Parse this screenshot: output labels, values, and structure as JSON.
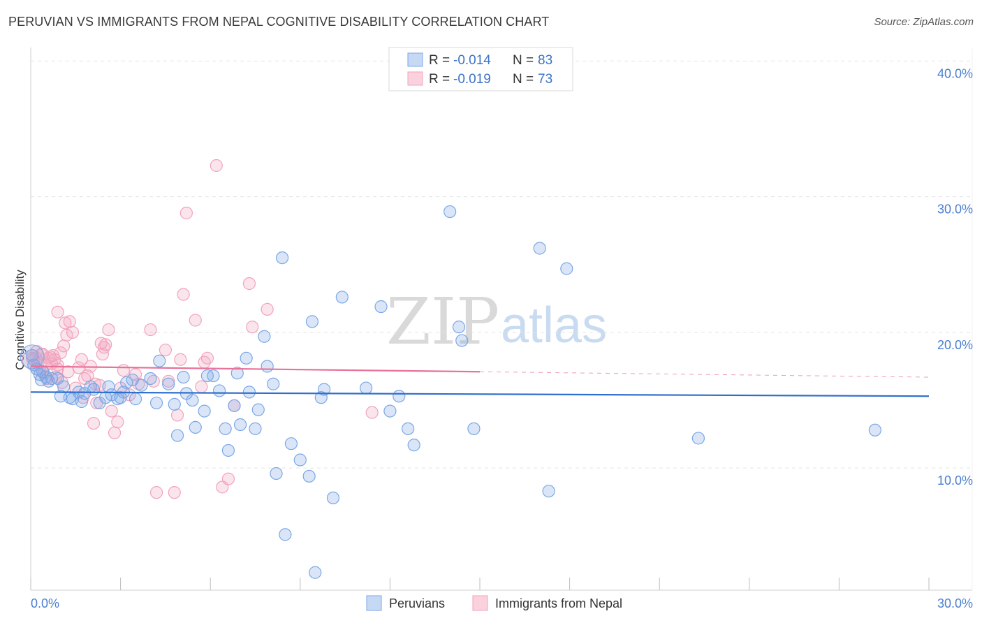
{
  "title": "PERUVIAN VS IMMIGRANTS FROM NEPAL COGNITIVE DISABILITY CORRELATION CHART",
  "source": "Source: ZipAtlas.com",
  "watermark": {
    "part1": "ZIP",
    "part2": "atlas"
  },
  "legend_top": {
    "rows": [
      {
        "r_label": "R = ",
        "r_value": "-0.014",
        "n_label": "N = ",
        "n_value": "83"
      },
      {
        "r_label": "R = ",
        "r_value": "-0.019",
        "n_label": "N = ",
        "n_value": "73"
      }
    ]
  },
  "chart_data": {
    "type": "scatter",
    "title": "PERUVIAN VS IMMIGRANTS FROM NEPAL COGNITIVE DISABILITY CORRELATION CHART",
    "xlabel": "",
    "ylabel": "Cognitive Disability",
    "xlim": [
      0,
      30
    ],
    "ylim": [
      1,
      41
    ],
    "x_tick_labels": [
      "0.0%",
      "30.0%"
    ],
    "y_ticks": [
      10,
      20,
      30,
      40
    ],
    "y_tick_labels": [
      "10.0%",
      "20.0%",
      "30.0%",
      "40.0%"
    ],
    "grid": true,
    "series": [
      {
        "name": "Peruvians",
        "color": "#7ba7e6",
        "line_color": "#2f6fcc",
        "R": -0.014,
        "N": 83,
        "trend": {
          "x": [
            0,
            30
          ],
          "y": [
            15.6,
            15.3
          ],
          "dashed_from": null
        },
        "points": [
          [
            0.05,
            18.3
          ],
          [
            0.1,
            17.6
          ],
          [
            0.2,
            17.3
          ],
          [
            0.3,
            16.9
          ],
          [
            0.35,
            16.5
          ],
          [
            0.5,
            16.7
          ],
          [
            0.6,
            16.4
          ],
          [
            0.7,
            16.6
          ],
          [
            1.0,
            15.3
          ],
          [
            1.4,
            15.1
          ],
          [
            1.8,
            15.5
          ],
          [
            2.1,
            15.8
          ],
          [
            2.5,
            15.2
          ],
          [
            3.1,
            15.6
          ],
          [
            3.4,
            16.5
          ],
          [
            0.9,
            16.6
          ],
          [
            1.1,
            16.0
          ],
          [
            1.3,
            15.2
          ],
          [
            1.7,
            14.9
          ],
          [
            2.0,
            16.0
          ],
          [
            2.3,
            14.8
          ],
          [
            2.6,
            16.0
          ],
          [
            2.9,
            15.1
          ],
          [
            3.2,
            16.3
          ],
          [
            3.5,
            15.1
          ],
          [
            3.7,
            16.1
          ],
          [
            4.0,
            16.6
          ],
          [
            4.2,
            14.8
          ],
          [
            4.3,
            17.9
          ],
          [
            4.6,
            16.2
          ],
          [
            4.8,
            14.7
          ],
          [
            4.9,
            12.4
          ],
          [
            5.1,
            16.7
          ],
          [
            5.2,
            15.5
          ],
          [
            5.4,
            15.0
          ],
          [
            5.5,
            13.0
          ],
          [
            5.8,
            14.2
          ],
          [
            5.9,
            16.8
          ],
          [
            6.1,
            16.8
          ],
          [
            6.3,
            15.7
          ],
          [
            6.5,
            12.9
          ],
          [
            6.6,
            11.3
          ],
          [
            6.8,
            14.6
          ],
          [
            6.9,
            17.0
          ],
          [
            7.0,
            13.2
          ],
          [
            7.2,
            18.1
          ],
          [
            7.3,
            15.6
          ],
          [
            7.5,
            12.9
          ],
          [
            7.6,
            14.3
          ],
          [
            7.8,
            19.7
          ],
          [
            7.9,
            17.5
          ],
          [
            8.1,
            16.2
          ],
          [
            8.2,
            9.6
          ],
          [
            8.4,
            25.5
          ],
          [
            8.5,
            5.1
          ],
          [
            8.7,
            11.8
          ],
          [
            9.0,
            10.6
          ],
          [
            9.3,
            9.4
          ],
          [
            9.4,
            20.8
          ],
          [
            9.5,
            2.3
          ],
          [
            9.7,
            15.2
          ],
          [
            9.8,
            15.8
          ],
          [
            10.1,
            7.8
          ],
          [
            10.4,
            22.6
          ],
          [
            11.2,
            15.9
          ],
          [
            11.7,
            21.9
          ],
          [
            12.0,
            14.2
          ],
          [
            12.3,
            15.3
          ],
          [
            12.6,
            12.9
          ],
          [
            12.8,
            11.7
          ],
          [
            14.3,
            20.4
          ],
          [
            14.4,
            19.4
          ],
          [
            14.8,
            12.9
          ],
          [
            14.0,
            28.9
          ],
          [
            17.0,
            26.2
          ],
          [
            17.3,
            8.3
          ],
          [
            17.9,
            24.7
          ],
          [
            22.3,
            12.2
          ],
          [
            28.2,
            12.8
          ],
          [
            0.4,
            17.1
          ],
          [
            1.6,
            15.6
          ],
          [
            2.7,
            15.4
          ],
          [
            3.0,
            15.2
          ]
        ]
      },
      {
        "name": "Immigrants from Nepal",
        "color": "#f2a3bc",
        "line_color": "#e8729a",
        "R": -0.019,
        "N": 73,
        "trend": {
          "x": [
            0,
            30
          ],
          "y": [
            17.5,
            16.7
          ],
          "dashed_from": 15
        },
        "points": [
          [
            0.05,
            18.1
          ],
          [
            0.1,
            18.0
          ],
          [
            0.2,
            18.6
          ],
          [
            0.25,
            17.8
          ],
          [
            0.3,
            17.2
          ],
          [
            0.4,
            18.4
          ],
          [
            0.5,
            17.6
          ],
          [
            0.6,
            18.1
          ],
          [
            0.7,
            17.7
          ],
          [
            0.8,
            18.0
          ],
          [
            0.9,
            17.3
          ],
          [
            1.0,
            18.5
          ],
          [
            1.05,
            16.3
          ],
          [
            1.1,
            19.0
          ],
          [
            1.15,
            20.7
          ],
          [
            0.85,
            16.7
          ],
          [
            0.45,
            17.0
          ],
          [
            0.55,
            16.6
          ],
          [
            0.75,
            18.3
          ],
          [
            0.9,
            17.6
          ],
          [
            0.9,
            21.5
          ],
          [
            1.2,
            19.8
          ],
          [
            1.3,
            20.8
          ],
          [
            1.4,
            20.0
          ],
          [
            1.5,
            15.9
          ],
          [
            1.6,
            17.4
          ],
          [
            1.7,
            18.0
          ],
          [
            1.8,
            16.6
          ],
          [
            1.9,
            16.8
          ],
          [
            2.0,
            17.5
          ],
          [
            2.1,
            13.3
          ],
          [
            2.2,
            14.8
          ],
          [
            2.3,
            16.1
          ],
          [
            2.4,
            18.4
          ],
          [
            2.5,
            19.1
          ],
          [
            2.6,
            20.2
          ],
          [
            2.7,
            14.2
          ],
          [
            2.8,
            12.6
          ],
          [
            2.9,
            13.4
          ],
          [
            3.0,
            15.9
          ],
          [
            3.1,
            17.2
          ],
          [
            3.3,
            15.4
          ],
          [
            3.5,
            16.9
          ],
          [
            3.6,
            16.2
          ],
          [
            4.0,
            20.2
          ],
          [
            4.1,
            16.4
          ],
          [
            4.2,
            8.2
          ],
          [
            4.5,
            18.7
          ],
          [
            4.6,
            16.4
          ],
          [
            4.8,
            8.2
          ],
          [
            4.9,
            13.9
          ],
          [
            5.0,
            18.0
          ],
          [
            5.1,
            22.8
          ],
          [
            5.2,
            28.8
          ],
          [
            5.5,
            20.9
          ],
          [
            5.7,
            16.0
          ],
          [
            5.8,
            17.8
          ],
          [
            5.9,
            18.1
          ],
          [
            6.2,
            32.3
          ],
          [
            6.4,
            8.6
          ],
          [
            6.6,
            9.2
          ],
          [
            6.8,
            14.6
          ],
          [
            7.3,
            23.6
          ],
          [
            7.4,
            20.4
          ],
          [
            7.9,
            21.7
          ],
          [
            11.4,
            14.1
          ],
          [
            2.35,
            19.2
          ],
          [
            2.45,
            18.9
          ],
          [
            1.25,
            17.1
          ],
          [
            0.65,
            18.2
          ],
          [
            0.35,
            18.4
          ],
          [
            1.75,
            15.2
          ],
          [
            2.15,
            16.2
          ]
        ]
      }
    ]
  },
  "legend_bottom": [
    {
      "label": "Peruvians"
    },
    {
      "label": "Immigrants from Nepal"
    }
  ]
}
